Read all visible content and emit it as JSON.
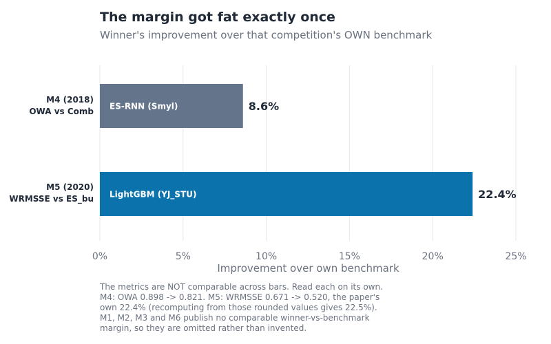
{
  "chart_data": {
    "type": "bar",
    "orientation": "horizontal",
    "title": "The margin got fat exactly once",
    "subtitle": "Winner's improvement over that competition's OWN benchmark",
    "xlabel": "Improvement over own benchmark",
    "xlim": [
      0,
      25
    ],
    "xticks": [
      0,
      5,
      10,
      15,
      20,
      25
    ],
    "xtick_labels": [
      "0%",
      "5%",
      "10%",
      "15%",
      "20%",
      "25%"
    ],
    "grid": "vertical",
    "categories": [
      {
        "line1": "M4 (2018)",
        "line2": "OWA vs Comb"
      },
      {
        "line1": "M5 (2020)",
        "line2": "WRMSSE vs ES_bu"
      }
    ],
    "bars": [
      {
        "value": 8.6,
        "value_label": "8.6%",
        "inner_label": "ES-RNN (Smyl)",
        "color": "#64748b"
      },
      {
        "value": 22.4,
        "value_label": "22.4%",
        "inner_label": "LightGBM (YJ_STU)",
        "color": "#0b72ac"
      }
    ],
    "note_lines": [
      "The metrics are NOT comparable across bars. Read each on its own.",
      "M4: OWA 0.898 -> 0.821. M5: WRMSSE 0.671 -> 0.520, the paper's",
      "own 22.4% (recomputing from those rounded values gives 22.5%).",
      "M1, M2, M3 and M6 publish no comparable winner-vs-benchmark",
      "margin, so they are omitted rather than invented."
    ]
  }
}
